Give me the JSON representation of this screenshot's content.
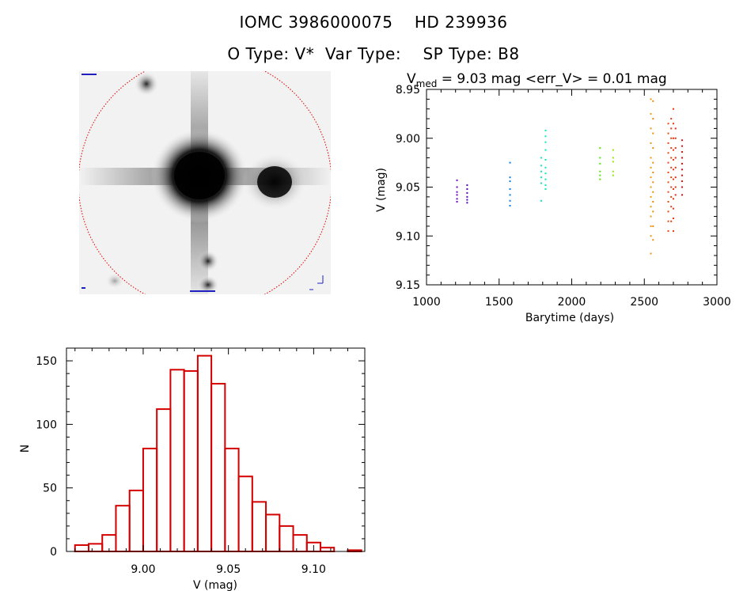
{
  "header": {
    "line1": "IOMC 3986000075    HD 239936",
    "line2": "O Type: V*  Var Type:    SP Type: B8"
  },
  "colors": {
    "hist_bar": "#d40000",
    "thumb_circle": "#e00000",
    "axis": "#000000"
  },
  "chart_data": [
    {
      "type": "scatter",
      "title_parts": {
        "v": "V",
        "sub": "med",
        "rest": " = 9.03 mag <err_V> = 0.01 mag"
      },
      "xlabel": "Barytime (days)",
      "ylabel": "V (mag)",
      "xlim": [
        1000,
        3000
      ],
      "ylim": [
        9.15,
        8.95
      ],
      "y_inverted": true,
      "xticks": [
        1000,
        1500,
        2000,
        2500,
        3000
      ],
      "xtick_labels": [
        "1000",
        "1500",
        "2000",
        "2500",
        "3000"
      ],
      "yticks": [
        8.95,
        9.0,
        9.05,
        9.1,
        9.15
      ],
      "ytick_labels": [
        "8.95",
        "9.00",
        "9.05",
        "9.10",
        "9.15"
      ],
      "points_color_by_time": true,
      "series": [
        {
          "x": 1210,
          "y": [
            9.043,
            9.05,
            9.055,
            9.058,
            9.062,
            9.065
          ]
        },
        {
          "x": 1280,
          "y": [
            9.048,
            9.052,
            9.056,
            9.06,
            9.063,
            9.066
          ]
        },
        {
          "x": 1575,
          "y": [
            9.025,
            9.04,
            9.044,
            9.052,
            9.058,
            9.064,
            9.069
          ]
        },
        {
          "x": 1790,
          "y": [
            9.02,
            9.028,
            9.034,
            9.04,
            9.046,
            9.064
          ]
        },
        {
          "x": 1820,
          "y": [
            8.992,
            8.998,
            9.004,
            9.012,
            9.022,
            9.03,
            9.036,
            9.042,
            9.048,
            9.052
          ]
        },
        {
          "x": 2195,
          "y": [
            9.01,
            9.02,
            9.026,
            9.034,
            9.038,
            9.042
          ]
        },
        {
          "x": 2285,
          "y": [
            9.012,
            9.02,
            9.024,
            9.034,
            9.038
          ]
        },
        {
          "x": 2545,
          "y": [
            8.96,
            8.975,
            8.99,
            9.005,
            9.02,
            9.03,
            9.04,
            9.05,
            9.06,
            9.07,
            9.08,
            9.09,
            9.1,
            9.118
          ]
        },
        {
          "x": 2560,
          "y": [
            8.962,
            8.98,
            8.995,
            9.01,
            9.025,
            9.035,
            9.045,
            9.055,
            9.065,
            9.075,
            9.09,
            9.104
          ]
        },
        {
          "x": 2665,
          "y": [
            8.985,
            8.995,
            9.005,
            9.015,
            9.025,
            9.035,
            9.045,
            9.055,
            9.065,
            9.075,
            9.085,
            9.095
          ]
        },
        {
          "x": 2685,
          "y": [
            8.98,
            8.99,
            9.0,
            9.01,
            9.02,
            9.03,
            9.04,
            9.05,
            9.06,
            9.07,
            9.085
          ]
        },
        {
          "x": 2700,
          "y": [
            8.97,
            8.985,
            9.0,
            9.012,
            9.022,
            9.032,
            9.042,
            9.052,
            9.062,
            9.072,
            9.082,
            9.095
          ]
        },
        {
          "x": 2715,
          "y": [
            8.99,
            9.0,
            9.01,
            9.02,
            9.03,
            9.04,
            9.05,
            9.058
          ]
        },
        {
          "x": 2760,
          "y": [
            9.002,
            9.008,
            9.014,
            9.02,
            9.026,
            9.032,
            9.038,
            9.044,
            9.05,
            9.058
          ]
        }
      ]
    },
    {
      "type": "bar",
      "subtype": "histogram",
      "xlabel": "V (mag)",
      "ylabel": "N",
      "xlim": [
        8.955,
        9.13
      ],
      "ylim": [
        0,
        160
      ],
      "xticks": [
        9.0,
        9.05,
        9.1
      ],
      "xtick_labels": [
        "9.00",
        "9.05",
        "9.10"
      ],
      "yticks": [
        0,
        50,
        100,
        150
      ],
      "ytick_labels": [
        "0",
        "50",
        "100",
        "150"
      ],
      "bin_width": 0.008,
      "bins_start": [
        8.96,
        8.968,
        8.976,
        8.984,
        8.992,
        9.0,
        9.008,
        9.016,
        9.024,
        9.032,
        9.04,
        9.048,
        9.056,
        9.064,
        9.072,
        9.08,
        9.088,
        9.096,
        9.104,
        9.112,
        9.12
      ],
      "values": [
        5,
        6,
        13,
        36,
        48,
        81,
        112,
        143,
        142,
        154,
        132,
        81,
        59,
        39,
        29,
        20,
        13,
        7,
        3,
        0,
        1
      ]
    }
  ]
}
